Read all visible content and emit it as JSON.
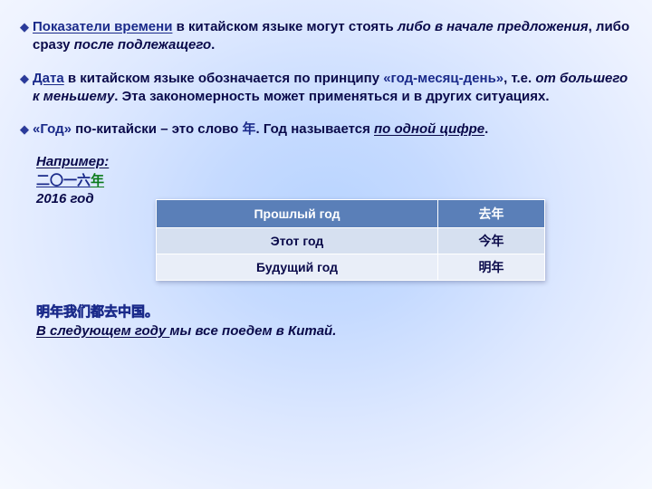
{
  "bullets": [
    {
      "segments": [
        {
          "t": "Показатели времени",
          "cls": "bold-blue underline"
        },
        {
          "t": " в китайском языке могут стоять "
        },
        {
          "t": "либо в начале предложения",
          "cls": "italic"
        },
        {
          "t": ", либо сразу "
        },
        {
          "t": "после подлежащего",
          "cls": "italic"
        },
        {
          "t": "."
        }
      ]
    },
    {
      "segments": [
        {
          "t": "Дата",
          "cls": "bold-blue underline"
        },
        {
          "t": " в китайском языке обозначается по принципу "
        },
        {
          "t": "«год-месяц-день»",
          "cls": "bold-blue"
        },
        {
          "t": ", т.е. "
        },
        {
          "t": "от большего к меньшему",
          "cls": "italic"
        },
        {
          "t": ". Эта закономерность может применяться и в других ситуациях."
        }
      ]
    },
    {
      "segments": [
        {
          "t": "«Год»",
          "cls": "bold-blue"
        },
        {
          "t": " по-китайски – это слово "
        },
        {
          "t": "年",
          "cls": "bold-blue"
        },
        {
          "t": ". Год называется "
        },
        {
          "t": "по одной цифре",
          "cls": "italic underline"
        },
        {
          "t": "."
        }
      ]
    }
  ],
  "example": {
    "label": "Например:",
    "hanzi_digits": "二〇一六",
    "hanzi_nian": "年",
    "translit": "2016 год"
  },
  "table": {
    "header": [
      "Прошлый год",
      "去年"
    ],
    "rows": [
      [
        "Этот год",
        "今年"
      ],
      [
        "Будущий год",
        "明年"
      ]
    ]
  },
  "bottom": {
    "chinese": "明年我们都去中国。",
    "ru_under": "В следующем году ",
    "ru_rest": "мы все поедем в Китай."
  }
}
